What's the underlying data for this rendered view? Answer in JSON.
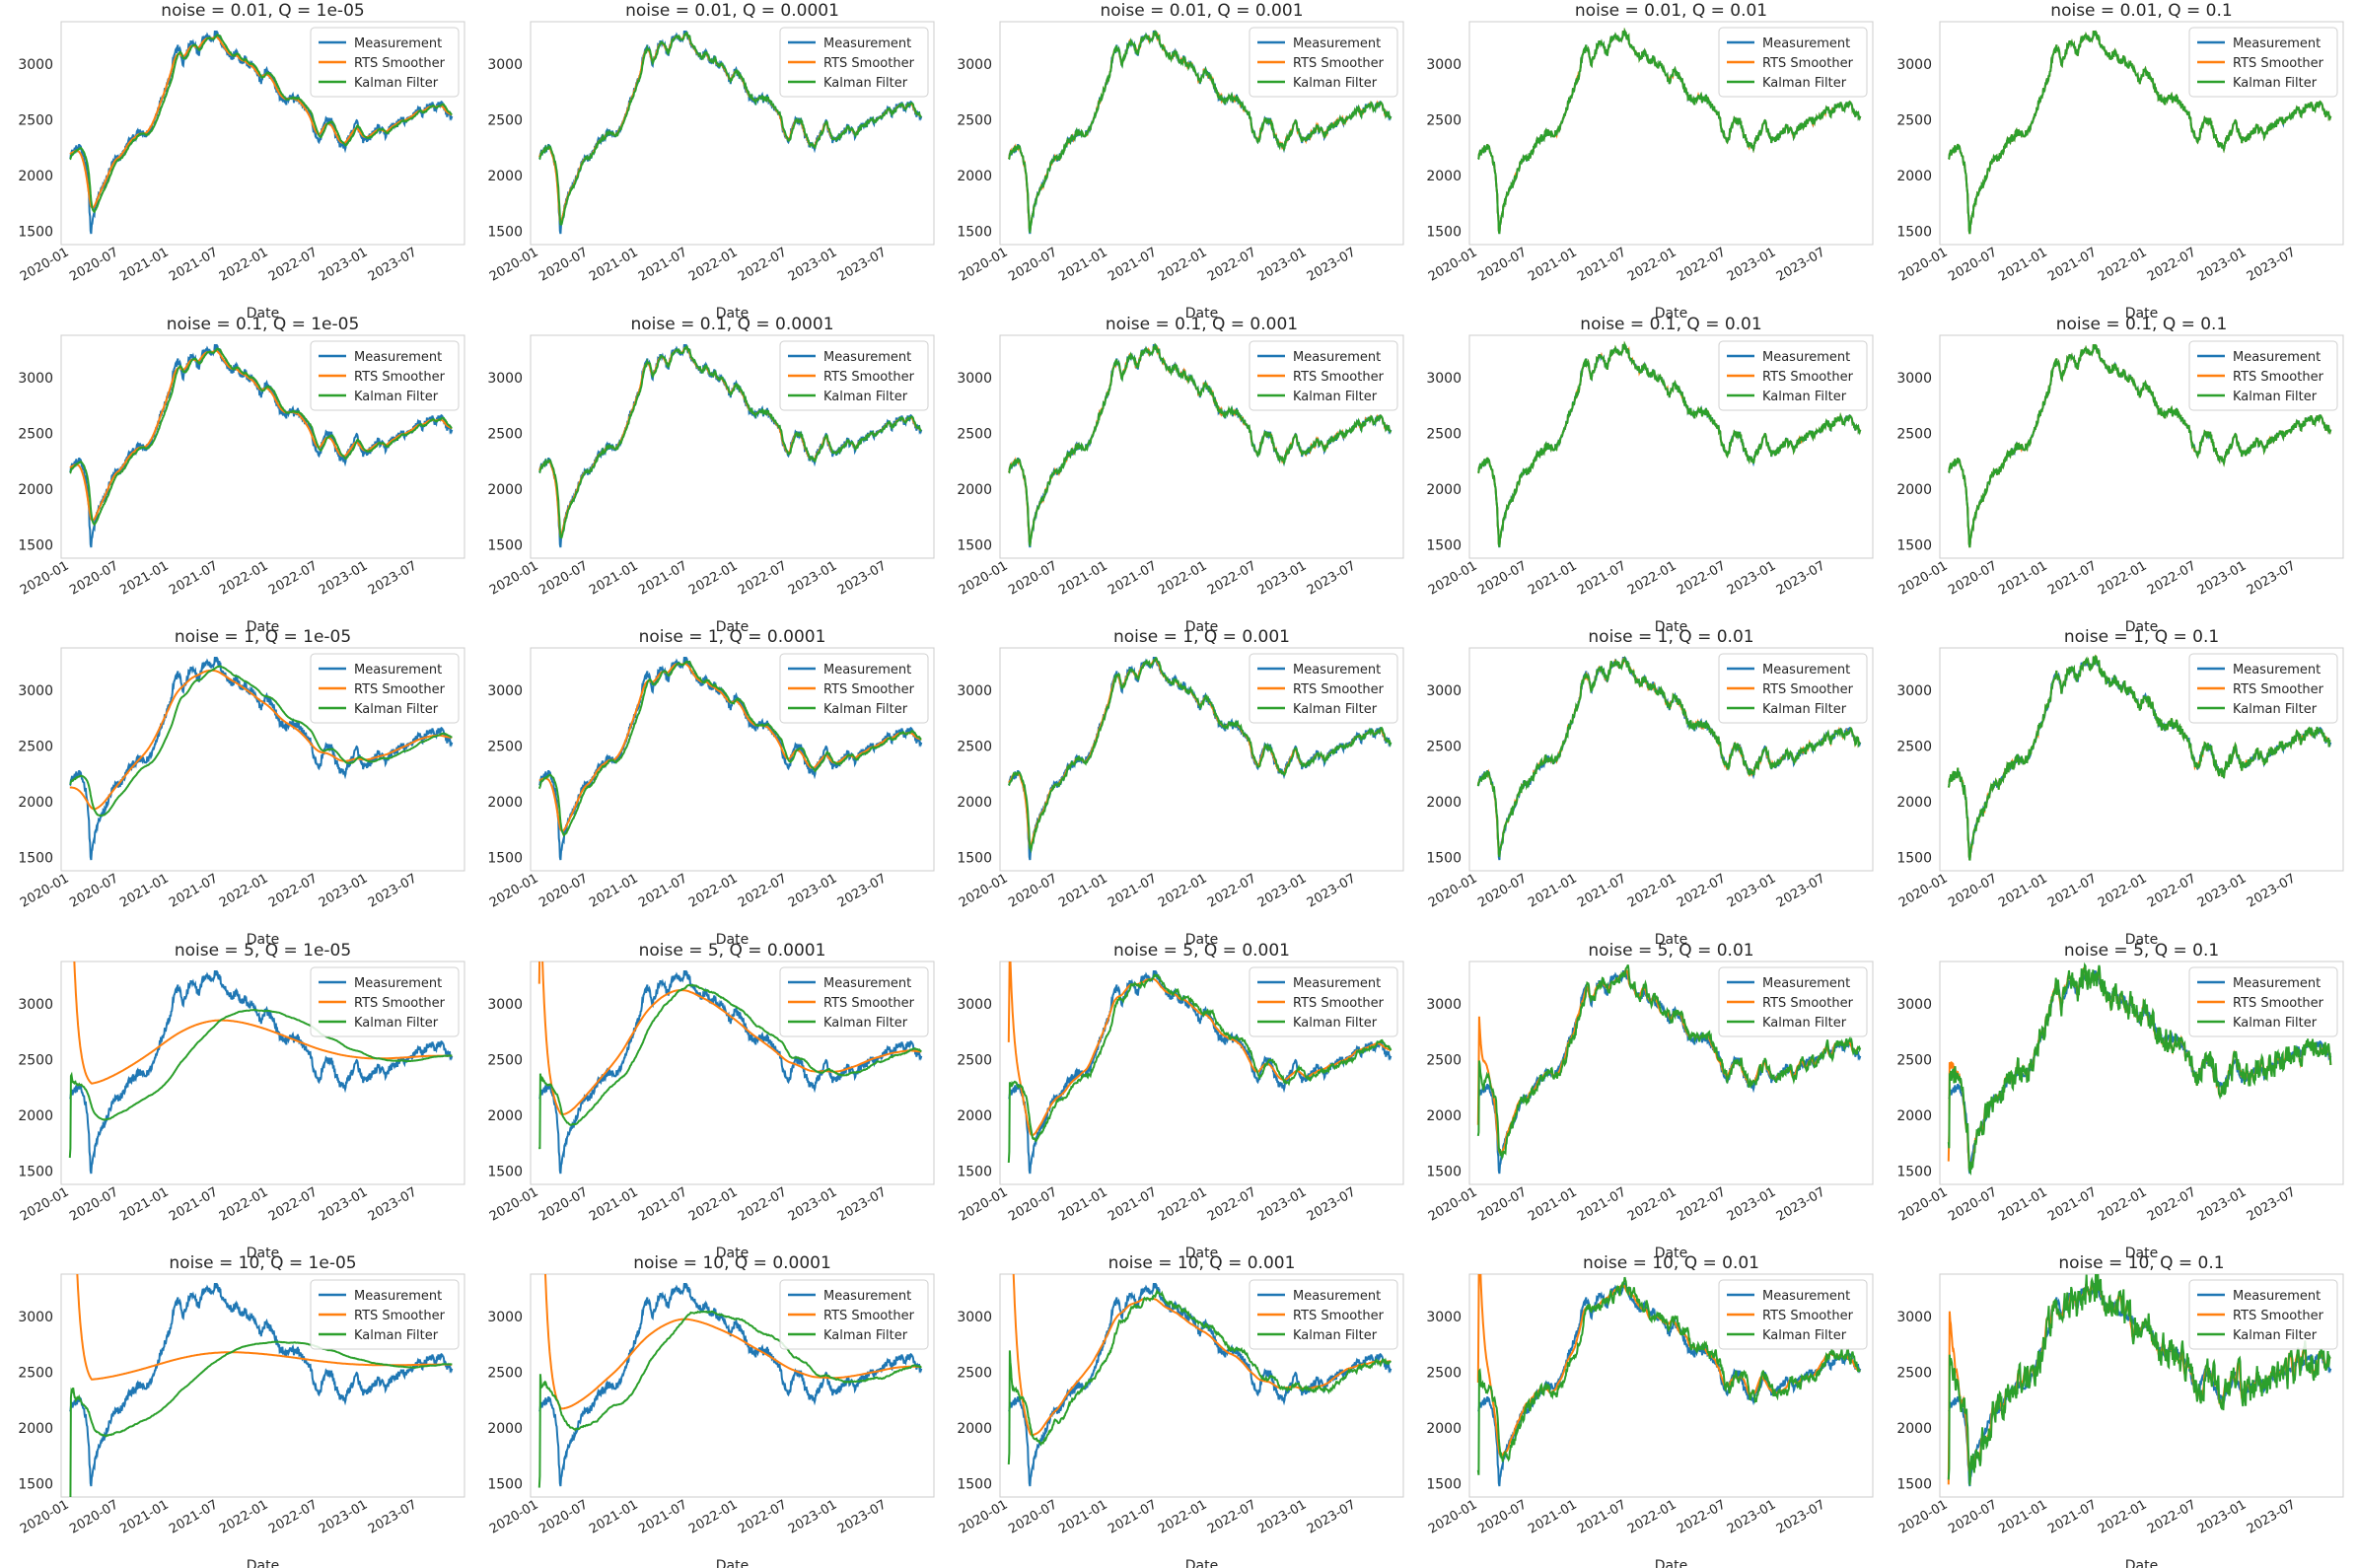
{
  "figure": {
    "colors": {
      "measurement": "#1f77b4",
      "rts": "#ff7f0e",
      "kalman": "#2ca02c",
      "frame": "#cccccc"
    }
  },
  "chart_data": {
    "type": "line",
    "layout": "5x5 grid of subplots",
    "subplot_titles": [
      [
        "noise = 0.01, Q = 1e-05",
        "noise = 0.01, Q = 0.0001",
        "noise = 0.01, Q = 0.001",
        "noise = 0.01, Q = 0.01",
        "noise = 0.01, Q = 0.1"
      ],
      [
        "noise = 0.1, Q = 1e-05",
        "noise = 0.1, Q = 0.0001",
        "noise = 0.1, Q = 0.001",
        "noise = 0.1, Q = 0.01",
        "noise = 0.1, Q = 0.1"
      ],
      [
        "noise = 1, Q = 1e-05",
        "noise = 1, Q = 0.0001",
        "noise = 1, Q = 0.001",
        "noise = 1, Q = 0.01",
        "noise = 1, Q = 0.1"
      ],
      [
        "noise = 5, Q = 1e-05",
        "noise = 5, Q = 0.0001",
        "noise = 5, Q = 0.001",
        "noise = 5, Q = 0.01",
        "noise = 5, Q = 0.1"
      ],
      [
        "noise = 10, Q = 1e-05",
        "noise = 10, Q = 0.0001",
        "noise = 10, Q = 0.001",
        "noise = 10, Q = 0.01",
        "noise = 10, Q = 0.1"
      ]
    ],
    "noise_levels": [
      0.01,
      0.1,
      1,
      5,
      10
    ],
    "Q_values": [
      1e-05,
      0.0001,
      0.001,
      0.01,
      0.1
    ],
    "xlabel": "Date",
    "ylabel": "",
    "x_tick_labels": [
      "2020-01",
      "2020-07",
      "2021-01",
      "2021-07",
      "2022-01",
      "2022-07",
      "2023-01",
      "2023-07"
    ],
    "xlim": [
      "2019-12-01",
      "2023-12-20"
    ],
    "y_ticks": [
      1500,
      2000,
      2500,
      3000
    ],
    "ylim": [
      1380,
      3380
    ],
    "grid": false,
    "legend": {
      "position": "top-right",
      "entries": [
        "Measurement",
        "RTS Smoother",
        "Kalman Filter"
      ]
    },
    "series_names": [
      "Measurement",
      "RTS Smoother",
      "Kalman Filter"
    ],
    "measurement_series": {
      "name": "Measurement",
      "x": [
        "2020-01-02",
        "2020-01-20",
        "2020-02-05",
        "2020-02-20",
        "2020-03-05",
        "2020-03-12",
        "2020-03-19",
        "2020-03-26",
        "2020-04-05",
        "2020-04-20",
        "2020-05-05",
        "2020-05-20",
        "2020-06-05",
        "2020-06-20",
        "2020-07-05",
        "2020-07-20",
        "2020-08-05",
        "2020-08-20",
        "2020-09-05",
        "2020-09-20",
        "2020-10-05",
        "2020-10-20",
        "2020-11-05",
        "2020-11-20",
        "2020-12-05",
        "2020-12-20",
        "2021-01-05",
        "2021-01-20",
        "2021-02-05",
        "2021-02-20",
        "2021-03-05",
        "2021-03-20",
        "2021-04-05",
        "2021-04-20",
        "2021-05-05",
        "2021-05-20",
        "2021-06-05",
        "2021-06-20",
        "2021-07-05",
        "2021-07-20",
        "2021-08-05",
        "2021-08-20",
        "2021-09-05",
        "2021-09-20",
        "2021-10-05",
        "2021-10-20",
        "2021-11-05",
        "2021-11-20",
        "2021-12-05",
        "2021-12-20",
        "2022-01-05",
        "2022-01-20",
        "2022-02-05",
        "2022-02-20",
        "2022-03-05",
        "2022-03-20",
        "2022-04-05",
        "2022-04-20",
        "2022-05-05",
        "2022-05-20",
        "2022-06-05",
        "2022-06-20",
        "2022-07-05",
        "2022-07-20",
        "2022-08-05",
        "2022-08-20",
        "2022-09-05",
        "2022-09-20",
        "2022-10-05",
        "2022-10-20",
        "2022-11-05",
        "2022-11-20",
        "2022-12-05",
        "2022-12-20",
        "2023-01-05",
        "2023-01-20",
        "2023-02-05",
        "2023-02-20",
        "2023-03-05",
        "2023-03-20",
        "2023-04-05",
        "2023-04-20",
        "2023-05-05",
        "2023-05-20",
        "2023-06-05",
        "2023-06-20",
        "2023-07-05",
        "2023-07-20",
        "2023-08-05",
        "2023-08-20",
        "2023-09-05",
        "2023-09-20",
        "2023-10-05",
        "2023-10-20",
        "2023-11-05"
      ],
      "y": [
        2180,
        2230,
        2250,
        2190,
        2050,
        1800,
        1470,
        1600,
        1720,
        1850,
        1900,
        2000,
        2100,
        2150,
        2160,
        2220,
        2300,
        2330,
        2370,
        2380,
        2350,
        2400,
        2480,
        2600,
        2700,
        2800,
        2900,
        3100,
        3150,
        3000,
        3080,
        3200,
        3150,
        3100,
        3230,
        3250,
        3220,
        3280,
        3230,
        3150,
        3100,
        3050,
        3120,
        3000,
        3050,
        2980,
        2980,
        2900,
        2850,
        2950,
        2900,
        2850,
        2720,
        2700,
        2650,
        2720,
        2680,
        2700,
        2620,
        2600,
        2520,
        2350,
        2300,
        2450,
        2500,
        2480,
        2350,
        2280,
        2250,
        2330,
        2400,
        2480,
        2350,
        2300,
        2340,
        2380,
        2430,
        2400,
        2360,
        2420,
        2450,
        2470,
        2500,
        2480,
        2520,
        2560,
        2600,
        2550,
        2620,
        2640,
        2580,
        2650,
        2620,
        2530,
        2550
      ]
    }
  }
}
